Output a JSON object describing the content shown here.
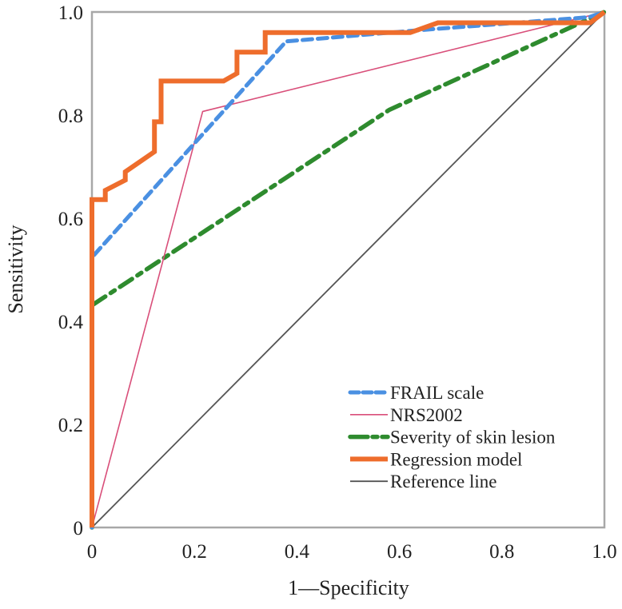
{
  "chart_data": {
    "type": "line",
    "title": "",
    "xlabel": "1—Specificity",
    "ylabel": "Sensitivity",
    "xlim": [
      0,
      1
    ],
    "ylim": [
      0,
      1
    ],
    "grid": false,
    "legend_position": "bottom-right",
    "x_ticks": [
      "0",
      "0.2",
      "0.4",
      "0.6",
      "0.8",
      "1.0"
    ],
    "y_ticks": [
      "0",
      "0.2",
      "0.4",
      "0.6",
      "0.8",
      "1.0"
    ],
    "x_tick_values": [
      0,
      0.2,
      0.4,
      0.6,
      0.8,
      1.0
    ],
    "y_tick_values": [
      0,
      0.2,
      0.4,
      0.6,
      0.8,
      1.0
    ],
    "series": [
      {
        "name": "FRAIL scale",
        "style": "dashed",
        "color": "#4a90e2",
        "x": [
          0,
          0,
          0.379,
          0.63,
          0.97,
          1.0
        ],
        "y": [
          0,
          0.524,
          0.943,
          0.964,
          0.99,
          1.0
        ]
      },
      {
        "name": "NRS2002",
        "style": "solid-thin",
        "color": "#d94f7a",
        "x": [
          0,
          0.216,
          1.0
        ],
        "y": [
          0,
          0.807,
          1.0
        ]
      },
      {
        "name": "Severity of skin lesion",
        "style": "dash-dot",
        "color": "#2e8b2e",
        "x": [
          0,
          0,
          0.58,
          1.0
        ],
        "y": [
          0,
          0.431,
          0.81,
          1.0
        ]
      },
      {
        "name": "Regression model",
        "style": "solid-thick",
        "color": "#ee6d2c",
        "x": [
          0,
          0,
          0.026,
          0.026,
          0.065,
          0.065,
          0.122,
          0.122,
          0.135,
          0.135,
          0.257,
          0.283,
          0.283,
          0.338,
          0.338,
          0.621,
          0.675,
          0.972,
          1.0
        ],
        "y": [
          0,
          0.636,
          0.636,
          0.654,
          0.674,
          0.69,
          0.729,
          0.787,
          0.787,
          0.866,
          0.866,
          0.881,
          0.922,
          0.922,
          0.96,
          0.96,
          0.979,
          0.979,
          1.0
        ]
      },
      {
        "name": "Reference line",
        "style": "solid",
        "color": "#555555",
        "x": [
          0,
          1
        ],
        "y": [
          0,
          1
        ]
      }
    ]
  }
}
